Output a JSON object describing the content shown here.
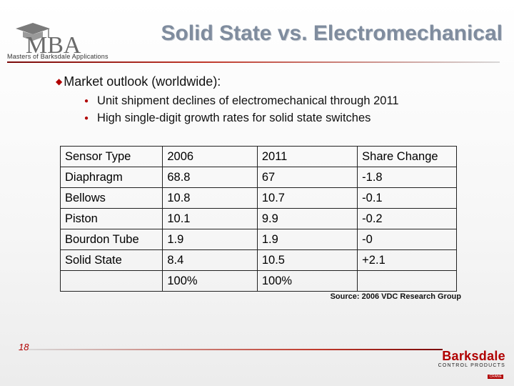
{
  "header": {
    "logo_text": "MBA",
    "logo_tagline": "Masters of Barksdale Applications",
    "title": "Solid State vs. Electromechanical"
  },
  "content": {
    "main_bullet": "Market outlook (worldwide):",
    "sub_bullets": [
      "Unit shipment declines of electromechanical through 2011",
      "High single-digit growth rates for solid state switches"
    ]
  },
  "table": {
    "headers": [
      "Sensor Type",
      "2006",
      "2011",
      "Share Change"
    ],
    "rows": [
      [
        "Diaphragm",
        "68.8",
        "67",
        "-1.8"
      ],
      [
        "Bellows",
        "10.8",
        "10.7",
        "-0.1"
      ],
      [
        "Piston",
        "10.1",
        "9.9",
        "-0.2"
      ],
      [
        "Bourdon Tube",
        "1.9",
        "1.9",
        "-0"
      ],
      [
        "Solid State",
        "8.4",
        "10.5",
        "+2.1"
      ],
      [
        "",
        "100%",
        "100%",
        ""
      ]
    ]
  },
  "source": "Source: 2006 VDC Research Group",
  "footer": {
    "page_number": "18",
    "brand_name": "Barksdale",
    "brand_sub": "CONTROL PRODUCTS",
    "brand_mark": "CRANE"
  },
  "colors": {
    "accent_red": "#b00000",
    "title_gray": "#7f8c9e"
  }
}
